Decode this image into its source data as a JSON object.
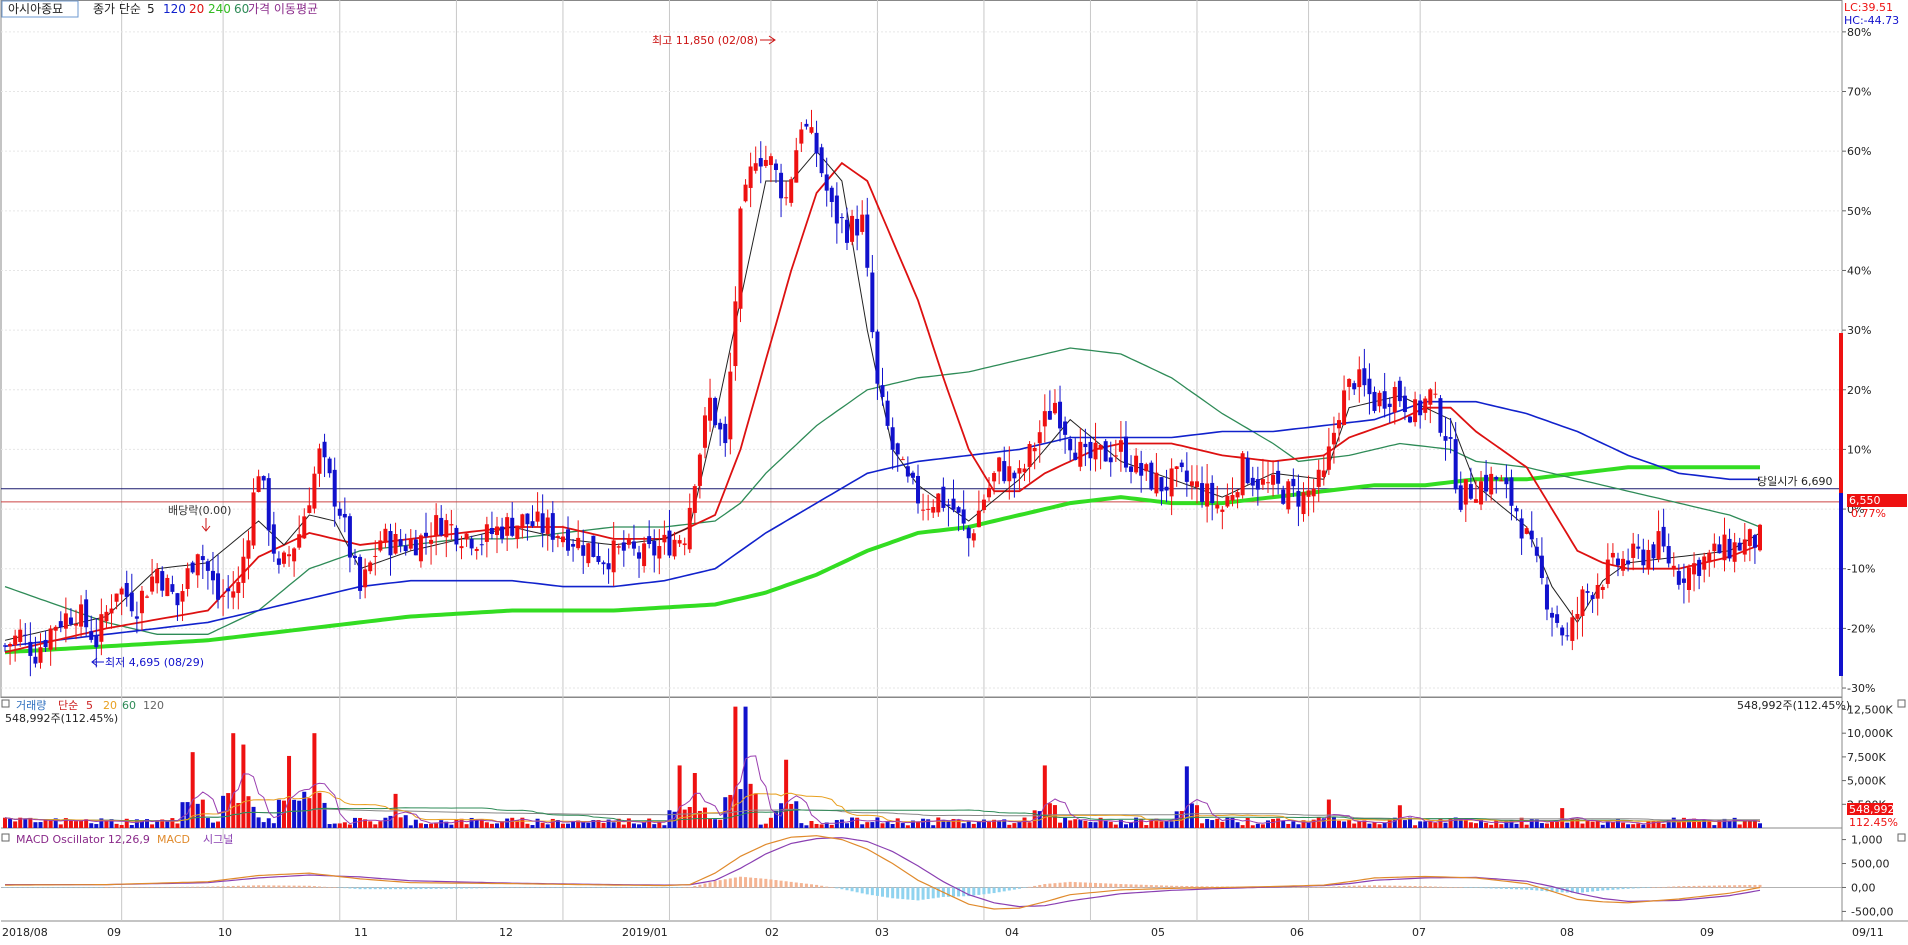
{
  "colors": {
    "up": "#ee1111",
    "down": "#1111cc",
    "ma5": "#222222",
    "ma20": "#dd1111",
    "ma60": "#2e8b57",
    "ma120": "#1122cc",
    "ma240": "#33dd22",
    "grid": "#c8c8c8",
    "axis": "#000000",
    "macd": "#e08a2c",
    "signal": "#8a3fb2",
    "osc_pos": "#f4b493",
    "osc_neg": "#8fd3ef",
    "price_box": "#ee1111",
    "title_border": "#6e9ad0"
  },
  "price_pane": {
    "stock_name": "아시아종묘",
    "ma_label": "종가 단순",
    "ma_periods": [
      "5",
      "120",
      "20",
      "240",
      "60"
    ],
    "ma_suffix": "가격 이동평균",
    "lc": "LC:39.51",
    "hc": "HC:-44.73",
    "high_label": "최고 11,850 (02/08)",
    "low_label": "최저 4,695 (08/29)",
    "dividend_label": "배당락(0.00)",
    "current_label": "당일시가 6,690",
    "price_box": "6,550",
    "change_pct": "0.77%",
    "right_axis": [
      "80%",
      "70%",
      "60%",
      "50%",
      "40%",
      "30%",
      "20%",
      "10%",
      "0%",
      "-10%",
      "-20%",
      "-30%"
    ]
  },
  "volume_pane": {
    "title": "거래량",
    "ma_label": "단순",
    "ma_periods": [
      "5",
      "20",
      "60",
      "120"
    ],
    "value_label": "548,992주(112.45%)",
    "right_axis": [
      "12,500K",
      "10,000K",
      "7,500K",
      "5,000K",
      "2,500K"
    ],
    "current_box": "548,992",
    "current_pct": "112.45%"
  },
  "macd_pane": {
    "osc_label": "MACD Oscillator 12,26,9",
    "macd_label": "MACD",
    "signal_label": "시그널",
    "right_axis": [
      "1,000",
      "500,00",
      "0,00",
      "-500,00"
    ]
  },
  "x_axis": {
    "labels": [
      "2018/08",
      "09",
      "10",
      "11",
      "12",
      "2019/01",
      "02",
      "03",
      "04",
      "05",
      "06",
      "07",
      "08",
      "09",
      "09/11"
    ]
  },
  "chart_data": {
    "type": "candlestick",
    "anchors": [
      [
        0,
        -23
      ],
      [
        3,
        -21
      ],
      [
        6,
        -24
      ],
      [
        10,
        -19
      ],
      [
        14,
        -17
      ],
      [
        18,
        -22
      ],
      [
        22,
        -13
      ],
      [
        26,
        -16
      ],
      [
        30,
        -10
      ],
      [
        34,
        -16
      ],
      [
        38,
        -6
      ],
      [
        42,
        -15
      ],
      [
        46,
        -13
      ],
      [
        50,
        7
      ],
      [
        54,
        -11
      ],
      [
        58,
        -4
      ],
      [
        62,
        9
      ],
      [
        66,
        0
      ],
      [
        70,
        -14
      ],
      [
        74,
        -5
      ],
      [
        78,
        -6
      ],
      [
        82,
        -5
      ],
      [
        86,
        -2
      ],
      [
        90,
        -4
      ],
      [
        94,
        -5
      ],
      [
        98,
        -3
      ],
      [
        102,
        -2
      ],
      [
        106,
        -3
      ],
      [
        110,
        -4
      ],
      [
        114,
        -6
      ],
      [
        118,
        -8
      ],
      [
        122,
        -7
      ],
      [
        126,
        -8
      ],
      [
        130,
        -6
      ],
      [
        134,
        -4
      ],
      [
        136,
        6
      ],
      [
        139,
        18
      ],
      [
        142,
        10
      ],
      [
        145,
        48
      ],
      [
        148,
        60
      ],
      [
        151,
        58
      ],
      [
        154,
        52
      ],
      [
        157,
        65
      ],
      [
        160,
        60
      ],
      [
        163,
        50
      ],
      [
        166,
        47
      ],
      [
        169,
        48
      ],
      [
        172,
        20
      ],
      [
        175,
        10
      ],
      [
        178,
        4
      ],
      [
        181,
        1
      ],
      [
        184,
        2
      ],
      [
        187,
        0
      ],
      [
        190,
        -5
      ],
      [
        193,
        2
      ],
      [
        196,
        7
      ],
      [
        200,
        5
      ],
      [
        204,
        13
      ],
      [
        207,
        18
      ],
      [
        210,
        12
      ],
      [
        213,
        8
      ],
      [
        216,
        9
      ],
      [
        220,
        10
      ],
      [
        224,
        6
      ],
      [
        228,
        4
      ],
      [
        232,
        5
      ],
      [
        236,
        3
      ],
      [
        240,
        0
      ],
      [
        244,
        7
      ],
      [
        248,
        4
      ],
      [
        252,
        3
      ],
      [
        256,
        2
      ],
      [
        260,
        5
      ],
      [
        263,
        17
      ],
      [
        266,
        22
      ],
      [
        270,
        18
      ],
      [
        274,
        20
      ],
      [
        278,
        16
      ],
      [
        281,
        19
      ],
      [
        284,
        13
      ],
      [
        287,
        2
      ],
      [
        290,
        4
      ],
      [
        294,
        5
      ],
      [
        298,
        0
      ],
      [
        302,
        -10
      ],
      [
        305,
        -17
      ],
      [
        308,
        -22
      ],
      [
        311,
        -15
      ],
      [
        314,
        -12
      ],
      [
        318,
        -9
      ],
      [
        322,
        -8
      ],
      [
        326,
        -6
      ],
      [
        330,
        -11
      ],
      [
        334,
        -9
      ],
      [
        338,
        -7
      ],
      [
        342,
        -6
      ],
      [
        346,
        -5
      ]
    ],
    "ma5": [
      [
        0,
        -22
      ],
      [
        10,
        -20
      ],
      [
        20,
        -18
      ],
      [
        30,
        -10
      ],
      [
        40,
        -9
      ],
      [
        50,
        -2
      ],
      [
        55,
        -6
      ],
      [
        60,
        -1
      ],
      [
        65,
        -2
      ],
      [
        70,
        -10
      ],
      [
        80,
        -7
      ],
      [
        90,
        -5
      ],
      [
        100,
        -3
      ],
      [
        110,
        -5
      ],
      [
        120,
        -6
      ],
      [
        130,
        -5
      ],
      [
        135,
        -3
      ],
      [
        140,
        15
      ],
      [
        145,
        35
      ],
      [
        150,
        55
      ],
      [
        155,
        55
      ],
      [
        160,
        60
      ],
      [
        165,
        55
      ],
      [
        170,
        30
      ],
      [
        175,
        10
      ],
      [
        180,
        4
      ],
      [
        190,
        -2
      ],
      [
        200,
        5
      ],
      [
        210,
        15
      ],
      [
        220,
        8
      ],
      [
        230,
        5
      ],
      [
        240,
        2
      ],
      [
        250,
        6
      ],
      [
        260,
        5
      ],
      [
        265,
        17
      ],
      [
        275,
        19
      ],
      [
        285,
        15
      ],
      [
        290,
        4
      ],
      [
        300,
        -3
      ],
      [
        305,
        -13
      ],
      [
        310,
        -19
      ],
      [
        315,
        -12
      ],
      [
        320,
        -9
      ],
      [
        330,
        -8
      ],
      [
        340,
        -7
      ],
      [
        346,
        -4
      ]
    ],
    "ma20": [
      [
        0,
        -24
      ],
      [
        20,
        -20
      ],
      [
        40,
        -17
      ],
      [
        50,
        -8
      ],
      [
        60,
        -4
      ],
      [
        70,
        -6
      ],
      [
        80,
        -5
      ],
      [
        90,
        -4
      ],
      [
        100,
        -3
      ],
      [
        110,
        -3
      ],
      [
        120,
        -5
      ],
      [
        130,
        -5
      ],
      [
        140,
        -1
      ],
      [
        145,
        10
      ],
      [
        150,
        25
      ],
      [
        155,
        40
      ],
      [
        160,
        53
      ],
      [
        165,
        58
      ],
      [
        170,
        55
      ],
      [
        175,
        45
      ],
      [
        180,
        35
      ],
      [
        185,
        22
      ],
      [
        190,
        10
      ],
      [
        195,
        3
      ],
      [
        200,
        3
      ],
      [
        205,
        6
      ],
      [
        210,
        8
      ],
      [
        215,
        10
      ],
      [
        220,
        11
      ],
      [
        230,
        11
      ],
      [
        240,
        9
      ],
      [
        250,
        8
      ],
      [
        260,
        9
      ],
      [
        265,
        12
      ],
      [
        275,
        15
      ],
      [
        280,
        17
      ],
      [
        285,
        17
      ],
      [
        290,
        13
      ],
      [
        300,
        7
      ],
      [
        305,
        0
      ],
      [
        310,
        -7
      ],
      [
        315,
        -9
      ],
      [
        320,
        -10
      ],
      [
        330,
        -10
      ],
      [
        340,
        -8
      ],
      [
        346,
        -6
      ]
    ],
    "ma60": [
      [
        0,
        -13
      ],
      [
        10,
        -16
      ],
      [
        20,
        -19
      ],
      [
        30,
        -21
      ],
      [
        40,
        -21
      ],
      [
        50,
        -17
      ],
      [
        60,
        -10
      ],
      [
        70,
        -7
      ],
      [
        80,
        -6
      ],
      [
        90,
        -5
      ],
      [
        100,
        -5
      ],
      [
        110,
        -4
      ],
      [
        120,
        -3
      ],
      [
        130,
        -3
      ],
      [
        140,
        -2
      ],
      [
        145,
        1
      ],
      [
        150,
        6
      ],
      [
        160,
        14
      ],
      [
        170,
        20
      ],
      [
        175,
        21
      ],
      [
        180,
        22
      ],
      [
        190,
        23
      ],
      [
        200,
        25
      ],
      [
        210,
        27
      ],
      [
        220,
        26
      ],
      [
        230,
        22
      ],
      [
        240,
        16
      ],
      [
        250,
        11
      ],
      [
        255,
        8
      ],
      [
        265,
        9
      ],
      [
        275,
        11
      ],
      [
        285,
        10
      ],
      [
        290,
        8
      ],
      [
        300,
        7
      ],
      [
        310,
        5
      ],
      [
        320,
        3
      ],
      [
        330,
        1
      ],
      [
        340,
        -1
      ],
      [
        346,
        -3
      ]
    ],
    "ma120": [
      [
        0,
        -23
      ],
      [
        20,
        -21
      ],
      [
        40,
        -19
      ],
      [
        50,
        -17
      ],
      [
        60,
        -15
      ],
      [
        70,
        -13
      ],
      [
        80,
        -12
      ],
      [
        90,
        -12
      ],
      [
        100,
        -12
      ],
      [
        110,
        -13
      ],
      [
        120,
        -13
      ],
      [
        130,
        -12
      ],
      [
        140,
        -10
      ],
      [
        145,
        -7
      ],
      [
        150,
        -4
      ],
      [
        160,
        1
      ],
      [
        170,
        6
      ],
      [
        175,
        7
      ],
      [
        180,
        8
      ],
      [
        190,
        9
      ],
      [
        200,
        10
      ],
      [
        210,
        12
      ],
      [
        220,
        12
      ],
      [
        230,
        12
      ],
      [
        240,
        13
      ],
      [
        250,
        13
      ],
      [
        260,
        14
      ],
      [
        270,
        15
      ],
      [
        280,
        18
      ],
      [
        290,
        18
      ],
      [
        300,
        16
      ],
      [
        310,
        13
      ],
      [
        320,
        9
      ],
      [
        330,
        6
      ],
      [
        340,
        5
      ],
      [
        346,
        5
      ]
    ],
    "ma240": [
      [
        0,
        -24
      ],
      [
        20,
        -23
      ],
      [
        40,
        -22
      ],
      [
        60,
        -20
      ],
      [
        80,
        -18
      ],
      [
        100,
        -17
      ],
      [
        120,
        -17
      ],
      [
        140,
        -16
      ],
      [
        150,
        -14
      ],
      [
        160,
        -11
      ],
      [
        170,
        -7
      ],
      [
        180,
        -4
      ],
      [
        190,
        -3
      ],
      [
        200,
        -1
      ],
      [
        210,
        1
      ],
      [
        220,
        2
      ],
      [
        230,
        1
      ],
      [
        240,
        1
      ],
      [
        250,
        2
      ],
      [
        260,
        3
      ],
      [
        270,
        4
      ],
      [
        280,
        4
      ],
      [
        290,
        5
      ],
      [
        300,
        5
      ],
      [
        310,
        6
      ],
      [
        320,
        7
      ],
      [
        330,
        7
      ],
      [
        340,
        7
      ],
      [
        346,
        7
      ]
    ],
    "volume_peaks": [
      [
        37,
        8000
      ],
      [
        45,
        10000
      ],
      [
        47,
        8800
      ],
      [
        56,
        7600
      ],
      [
        61,
        10000
      ],
      [
        77,
        3600
      ],
      [
        133,
        6600
      ],
      [
        136,
        5800
      ],
      [
        144,
        12800
      ],
      [
        146,
        12800
      ],
      [
        154,
        7200
      ],
      [
        205,
        6600
      ],
      [
        233,
        6500
      ],
      [
        261,
        3000
      ],
      [
        275,
        2400
      ],
      [
        307,
        2100
      ]
    ],
    "volume_base": 700,
    "macd_points": [
      [
        0,
        50
      ],
      [
        20,
        60
      ],
      [
        40,
        120
      ],
      [
        50,
        250
      ],
      [
        60,
        300
      ],
      [
        70,
        180
      ],
      [
        80,
        100
      ],
      [
        100,
        80
      ],
      [
        120,
        50
      ],
      [
        130,
        40
      ],
      [
        135,
        60
      ],
      [
        140,
        300
      ],
      [
        145,
        650
      ],
      [
        150,
        900
      ],
      [
        155,
        1050
      ],
      [
        160,
        1080
      ],
      [
        165,
        1000
      ],
      [
        170,
        800
      ],
      [
        175,
        500
      ],
      [
        180,
        150
      ],
      [
        185,
        -100
      ],
      [
        190,
        -350
      ],
      [
        195,
        -450
      ],
      [
        200,
        -430
      ],
      [
        205,
        -300
      ],
      [
        210,
        -150
      ],
      [
        220,
        -50
      ],
      [
        230,
        -20
      ],
      [
        240,
        0
      ],
      [
        250,
        20
      ],
      [
        260,
        50
      ],
      [
        265,
        120
      ],
      [
        270,
        200
      ],
      [
        280,
        230
      ],
      [
        290,
        200
      ],
      [
        300,
        80
      ],
      [
        305,
        -80
      ],
      [
        310,
        -250
      ],
      [
        315,
        -300
      ],
      [
        320,
        -320
      ],
      [
        330,
        -240
      ],
      [
        340,
        -120
      ],
      [
        346,
        0
      ]
    ],
    "signal_points": [
      [
        0,
        60
      ],
      [
        20,
        60
      ],
      [
        40,
        100
      ],
      [
        50,
        200
      ],
      [
        60,
        260
      ],
      [
        70,
        220
      ],
      [
        80,
        140
      ],
      [
        100,
        90
      ],
      [
        120,
        60
      ],
      [
        130,
        50
      ],
      [
        135,
        55
      ],
      [
        140,
        150
      ],
      [
        145,
        400
      ],
      [
        150,
        700
      ],
      [
        155,
        920
      ],
      [
        160,
        1020
      ],
      [
        165,
        1040
      ],
      [
        170,
        960
      ],
      [
        175,
        750
      ],
      [
        180,
        450
      ],
      [
        185,
        120
      ],
      [
        190,
        -150
      ],
      [
        195,
        -320
      ],
      [
        200,
        -400
      ],
      [
        205,
        -380
      ],
      [
        210,
        -280
      ],
      [
        220,
        -130
      ],
      [
        230,
        -60
      ],
      [
        240,
        -20
      ],
      [
        250,
        10
      ],
      [
        260,
        40
      ],
      [
        265,
        80
      ],
      [
        270,
        150
      ],
      [
        280,
        200
      ],
      [
        290,
        210
      ],
      [
        300,
        130
      ],
      [
        305,
        20
      ],
      [
        310,
        -120
      ],
      [
        315,
        -230
      ],
      [
        320,
        -290
      ],
      [
        330,
        -270
      ],
      [
        340,
        -170
      ],
      [
        346,
        -60
      ]
    ],
    "y_range_pct": [
      -31,
      84
    ],
    "volume_range": [
      0,
      13500
    ],
    "macd_range": [
      -700,
      1200
    ],
    "n_days": 347
  }
}
